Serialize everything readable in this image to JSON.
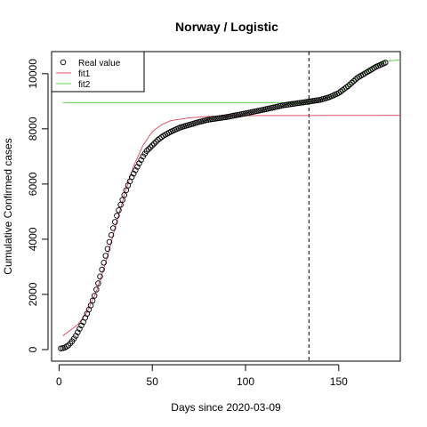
{
  "chart_data": {
    "type": "scatter",
    "title": "Norway / Logistic",
    "xlabel": "Days since 2020-03-09",
    "ylabel": "Cumulative Confirmed cases",
    "xlim": [
      -4,
      183
    ],
    "ylim": [
      -420,
      10800
    ],
    "x_ticks": [
      0,
      50,
      100,
      150
    ],
    "y_ticks": [
      0,
      2000,
      4000,
      6000,
      8000,
      10000
    ],
    "legend_position": "top-left",
    "vline_x": 134,
    "colors": {
      "points": "#000000",
      "fit1": "#df536b",
      "fit2": "#61d04f",
      "vline": "#000000"
    },
    "series": [
      {
        "name": "Real value",
        "kind": "points",
        "anchors": [
          [
            1,
            40
          ],
          [
            3,
            70
          ],
          [
            5,
            150
          ],
          [
            7,
            300
          ],
          [
            9,
            500
          ],
          [
            11,
            750
          ],
          [
            13,
            1000
          ],
          [
            15,
            1300
          ],
          [
            17,
            1600
          ],
          [
            19,
            1950
          ],
          [
            21,
            2400
          ],
          [
            23,
            2900
          ],
          [
            25,
            3400
          ],
          [
            27,
            3900
          ],
          [
            29,
            4400
          ],
          [
            31,
            4850
          ],
          [
            33,
            5250
          ],
          [
            35,
            5600
          ],
          [
            37,
            5950
          ],
          [
            39,
            6250
          ],
          [
            41,
            6500
          ],
          [
            43,
            6750
          ],
          [
            45,
            7000
          ],
          [
            47,
            7200
          ],
          [
            50,
            7400
          ],
          [
            53,
            7600
          ],
          [
            56,
            7750
          ],
          [
            60,
            7900
          ],
          [
            65,
            8050
          ],
          [
            70,
            8150
          ],
          [
            75,
            8250
          ],
          [
            80,
            8330
          ],
          [
            90,
            8430
          ],
          [
            100,
            8560
          ],
          [
            110,
            8700
          ],
          [
            120,
            8850
          ],
          [
            130,
            8950
          ],
          [
            135,
            9000
          ],
          [
            140,
            9050
          ],
          [
            145,
            9150
          ],
          [
            150,
            9300
          ],
          [
            155,
            9550
          ],
          [
            160,
            9850
          ],
          [
            165,
            10050
          ],
          [
            170,
            10250
          ],
          [
            175,
            10400
          ]
        ]
      },
      {
        "name": "fit1",
        "kind": "line",
        "anchors": [
          [
            2,
            500
          ],
          [
            10,
            900
          ],
          [
            15,
            1350
          ],
          [
            20,
            2100
          ],
          [
            25,
            3150
          ],
          [
            30,
            4400
          ],
          [
            35,
            5600
          ],
          [
            40,
            6650
          ],
          [
            45,
            7400
          ],
          [
            50,
            7900
          ],
          [
            55,
            8150
          ],
          [
            60,
            8300
          ],
          [
            70,
            8400
          ],
          [
            80,
            8450
          ],
          [
            100,
            8480
          ],
          [
            183,
            8490
          ]
        ]
      },
      {
        "name": "fit2",
        "kind": "line",
        "anchors": [
          [
            2,
            8950
          ],
          [
            130,
            8950
          ],
          [
            135,
            8980
          ],
          [
            140,
            9050
          ],
          [
            145,
            9150
          ],
          [
            150,
            9300
          ],
          [
            155,
            9550
          ],
          [
            160,
            9850
          ],
          [
            165,
            10100
          ],
          [
            170,
            10300
          ],
          [
            175,
            10450
          ],
          [
            183,
            10500
          ]
        ]
      }
    ]
  }
}
